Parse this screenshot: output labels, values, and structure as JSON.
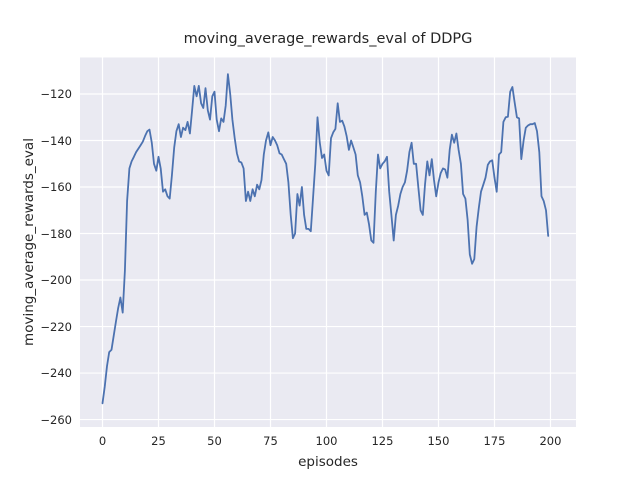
{
  "chart_data": {
    "type": "line",
    "title": "moving_average_rewards_eval of DDPG",
    "xlabel": "episodes",
    "ylabel": "moving_average_rewards_eval",
    "x_ticks": [
      0,
      25,
      50,
      75,
      100,
      125,
      150,
      175,
      200
    ],
    "y_ticks": [
      -120,
      -140,
      -160,
      -180,
      -200,
      -220,
      -240,
      -260
    ],
    "xlim": [
      -10.05,
      211.4
    ],
    "ylim": [
      -263.2,
      -104.3
    ],
    "grid": true,
    "legend": "none",
    "style": {
      "line_color": "#4c72b0",
      "plot_background": "#eaeaf2",
      "grid_color": "#ffffff",
      "text_color": "#262626",
      "figure_background": "#ffffff"
    },
    "series": [
      {
        "name": "moving_average_rewards_eval",
        "x_start": 0,
        "x_step": 1,
        "y": [
          -253,
          -246,
          -237,
          -231,
          -230,
          -224,
          -218,
          -212,
          -207.5,
          -214,
          -196,
          -166,
          -152,
          -149,
          -147,
          -145,
          -143.5,
          -142,
          -140.5,
          -138,
          -136,
          -135.3,
          -141,
          -150,
          -153,
          -147,
          -152,
          -162,
          -161,
          -164,
          -165,
          -155,
          -143,
          -136,
          -133,
          -138.5,
          -134.5,
          -135.5,
          -132,
          -137,
          -127,
          -116.5,
          -121,
          -116.5,
          -124,
          -126,
          -117.5,
          -127,
          -131,
          -121,
          -119,
          -131,
          -136,
          -130.5,
          -132,
          -125,
          -111.5,
          -120,
          -131,
          -139,
          -145.5,
          -149,
          -149.5,
          -152,
          -166,
          -162,
          -166,
          -161,
          -164,
          -159,
          -161,
          -157,
          -146,
          -140,
          -136.5,
          -142,
          -138.5,
          -140,
          -142,
          -145.5,
          -146,
          -148,
          -150,
          -158,
          -172,
          -182,
          -180,
          -163,
          -168,
          -160,
          -172,
          -178,
          -178,
          -179,
          -165,
          -150,
          -130,
          -141,
          -147.5,
          -146,
          -153,
          -155,
          -139,
          -136.5,
          -135,
          -124,
          -132,
          -131.5,
          -134,
          -138,
          -144,
          -140,
          -143,
          -146,
          -155,
          -158,
          -164,
          -172,
          -171,
          -176,
          -183,
          -184,
          -162,
          -146,
          -152,
          -150,
          -149,
          -147,
          -162,
          -172,
          -183,
          -172,
          -168,
          -163,
          -160,
          -158,
          -153,
          -145,
          -141,
          -150,
          -150,
          -160,
          -170,
          -172,
          -159,
          -149,
          -155,
          -148,
          -157,
          -164,
          -158,
          -154,
          -152,
          -152.5,
          -156,
          -144,
          -137.5,
          -141,
          -137,
          -144,
          -150,
          -163,
          -165,
          -174,
          -189,
          -193,
          -191,
          -177,
          -169,
          -162,
          -159,
          -156,
          -150.5,
          -149,
          -148.5,
          -156,
          -162,
          -146,
          -145,
          -132,
          -130,
          -129.8,
          -119,
          -117,
          -123.5,
          -130,
          -130.5,
          -148,
          -140,
          -134.5,
          -133.5,
          -133,
          -133,
          -132.5,
          -136,
          -145,
          -164,
          -166,
          -170,
          -181
        ]
      }
    ]
  }
}
